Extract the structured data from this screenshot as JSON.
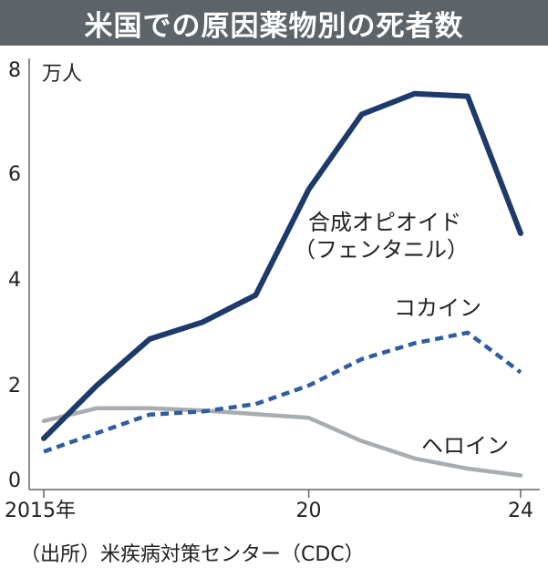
{
  "chart_data": {
    "type": "line",
    "title": "米国での原因薬物別の死者数",
    "unit_label": "万人",
    "source": "（出所）米疾病対策センター（CDC）",
    "x": [
      2015,
      2016,
      2017,
      2018,
      2019,
      2020,
      2021,
      2022,
      2023,
      2024
    ],
    "x_tick_labels": [
      {
        "x": 2015,
        "label": "2015年"
      },
      {
        "x": 2020,
        "label": "20"
      },
      {
        "x": 2024,
        "label": "24"
      }
    ],
    "y_ticks": [
      "0",
      "2",
      "4",
      "6",
      "8"
    ],
    "ylim": [
      0,
      8
    ],
    "series": [
      {
        "name": "合成オピオイド",
        "name_line2": "（フェンタニル）",
        "values": [
          0.95,
          1.95,
          2.83,
          3.15,
          3.66,
          5.66,
          7.08,
          7.47,
          7.42,
          4.83
        ],
        "color": "#1e3a6b",
        "style": "solid"
      },
      {
        "name": "コカイン",
        "values": [
          0.7,
          1.05,
          1.4,
          1.46,
          1.6,
          1.95,
          2.45,
          2.75,
          2.95,
          2.2
        ],
        "color": "#2f5d9e",
        "style": "dashed"
      },
      {
        "name": "ヘロイン",
        "values": [
          1.28,
          1.52,
          1.52,
          1.48,
          1.41,
          1.34,
          0.9,
          0.57,
          0.38,
          0.25
        ],
        "color": "#a8adb2",
        "style": "solid"
      }
    ]
  }
}
